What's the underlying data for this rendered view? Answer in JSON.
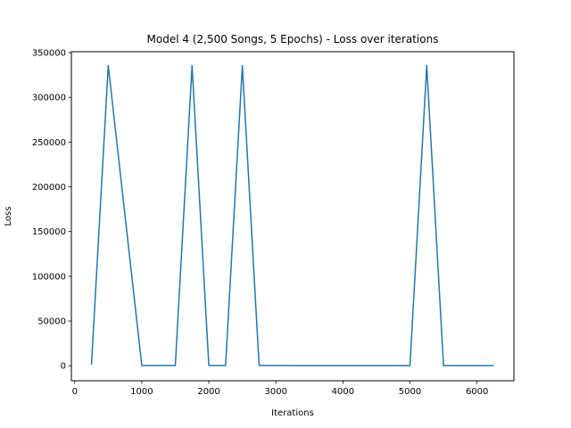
{
  "chart_data": {
    "type": "line",
    "title": "Model 4 (2,500 Songs, 5 Epochs) - Loss over iterations",
    "xlabel": "Iterations",
    "ylabel": "Loss",
    "xlim": [
      -50,
      6550
    ],
    "ylim": [
      -16700,
      351000
    ],
    "xticks": [
      0,
      1000,
      2000,
      3000,
      4000,
      5000,
      6000
    ],
    "yticks": [
      0,
      50000,
      100000,
      150000,
      200000,
      250000,
      300000,
      350000
    ],
    "grid": false,
    "series": [
      {
        "color": "#1f77b4",
        "x": [
          250,
          500,
          750,
          1000,
          1250,
          1500,
          1750,
          2000,
          2250,
          2500,
          2750,
          3000,
          3250,
          3500,
          3750,
          4000,
          4250,
          4500,
          4750,
          5000,
          5250,
          5500,
          5750,
          6000,
          6250
        ],
        "y": [
          1500,
          335500,
          168000,
          400,
          400,
          400,
          335500,
          400,
          400,
          335500,
          400,
          400,
          300,
          300,
          300,
          300,
          300,
          300,
          300,
          300,
          335500,
          300,
          300,
          300,
          300
        ]
      }
    ]
  }
}
